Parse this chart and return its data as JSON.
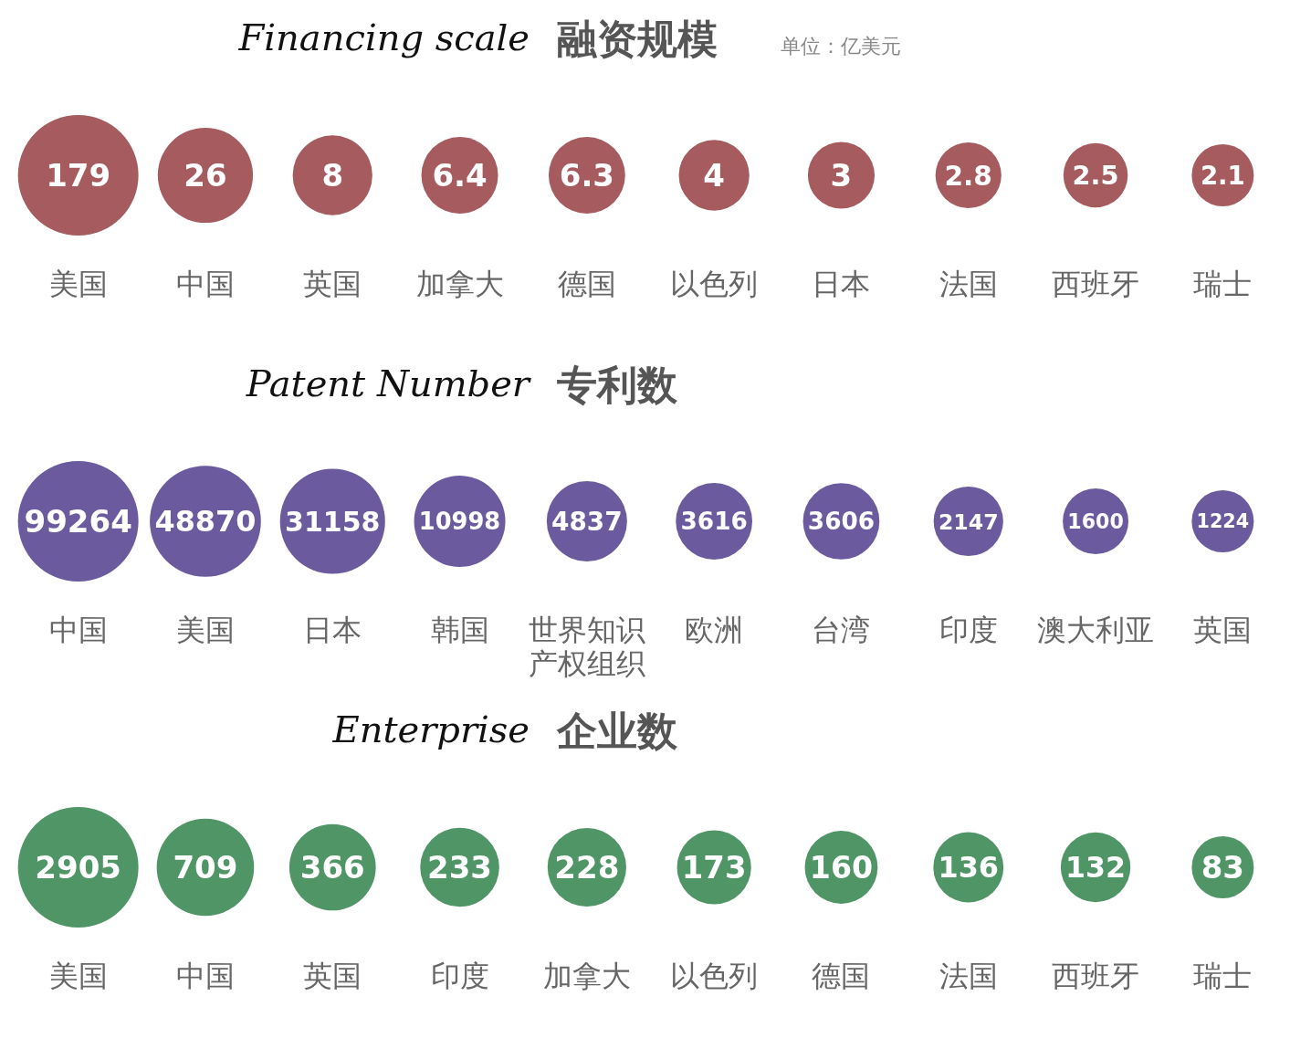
{
  "chart_data": [
    {
      "type": "other",
      "title": "融资规模",
      "subtitle": "Financing scale",
      "annotations": [
        "单位：亿美元"
      ],
      "data_labels": true,
      "categories": [
        "美国",
        "中国",
        "英国",
        "加拿大",
        "德国",
        "以色列",
        "日本",
        "法国",
        "西班牙",
        "瑞士"
      ],
      "series": [
        {
          "color": "#a65b5f",
          "values": [
            179,
            26,
            8,
            6.4,
            6.3,
            4,
            3,
            2.8,
            2.5,
            2.1
          ]
        }
      ]
    },
    {
      "type": "other",
      "title": "专利数",
      "subtitle": "Patent Number",
      "data_labels": true,
      "categories": [
        "中国",
        "美国",
        "日本",
        "韩国",
        "世界知识产权组织",
        "欧洲",
        "台湾",
        "印度",
        "澳大利亚",
        "英国"
      ],
      "series": [
        {
          "color": "#6b5a9e",
          "values": [
            99264,
            48870,
            31158,
            10998,
            4837,
            3616,
            3606,
            2147,
            1600,
            1224
          ]
        }
      ]
    },
    {
      "type": "other",
      "title": "企业数",
      "subtitle": "Enterprise",
      "data_labels": true,
      "categories": [
        "美国",
        "中国",
        "英国",
        "印度",
        "加拿大",
        "以色列",
        "德国",
        "法国",
        "西班牙",
        "瑞士"
      ],
      "series": [
        {
          "color": "#4f9566",
          "values": [
            2905,
            709,
            366,
            233,
            228,
            173,
            160,
            136,
            132,
            83
          ]
        }
      ]
    }
  ]
}
